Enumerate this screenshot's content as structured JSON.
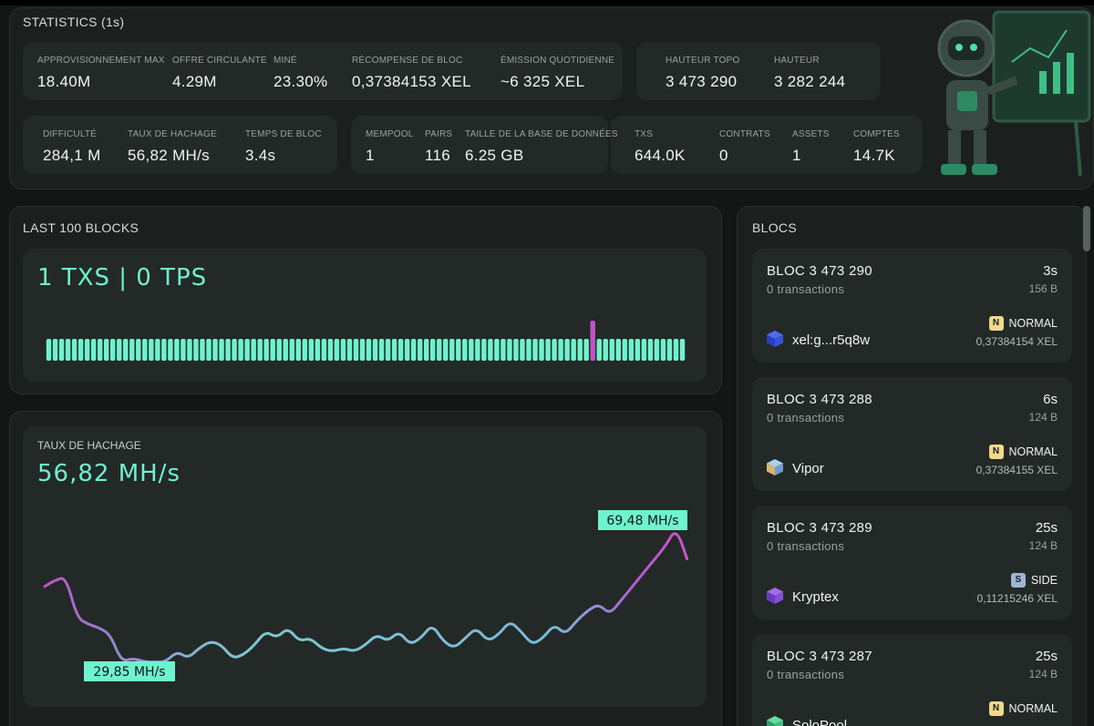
{
  "stats": {
    "title": "STATISTICS (1s)",
    "row1": [
      {
        "label": "APPROVISIONNEMENT MAX",
        "value": "18.40M"
      },
      {
        "label": "OFFRE CIRCULANTE",
        "value": "4.29M"
      },
      {
        "label": "MINÉ",
        "value": "23.30%"
      },
      {
        "label": "RÉCOMPENSE DE BLOC",
        "value": "0,37384153 XEL"
      },
      {
        "label": "ÉMISSION QUOTIDIENNE",
        "value": "~6 325 XEL"
      },
      {
        "label": "HAUTEUR TOPO",
        "value": "3 473 290"
      },
      {
        "label": "HAUTEUR",
        "value": "3 282 244"
      }
    ],
    "row2": [
      {
        "label": "DIFFICULTÉ",
        "value": "284,1 M"
      },
      {
        "label": "TAUX DE HACHAGE",
        "value": "56,82 MH/s"
      },
      {
        "label": "TEMPS DE BLOC",
        "value": "3.4s"
      },
      {
        "label": "MEMPOOL",
        "value": "1"
      },
      {
        "label": "PAIRS",
        "value": "116"
      },
      {
        "label": "TAILLE DE LA BASE DE DONNÉES",
        "value": "6.25 GB"
      },
      {
        "label": "TXS",
        "value": "644.0K"
      },
      {
        "label": "CONTRATS",
        "value": "0"
      },
      {
        "label": "ASSETS",
        "value": "1"
      },
      {
        "label": "COMPTES",
        "value": "14.7K"
      }
    ]
  },
  "last_blocks": {
    "title": "LAST 100 BLOCKS",
    "summary": "1 TXS | 0 TPS",
    "bar_count": 100,
    "highlight_index": 85
  },
  "hashrate": {
    "label": "TAUX DE HACHAGE",
    "value": "56,82 MH/s",
    "max_label": "69,48 MH/s",
    "min_label": "29,85 MH/s"
  },
  "chart_data": {
    "type": "line",
    "title": "TAUX DE HACHAGE",
    "series": [
      {
        "values": [
          52,
          54,
          55,
          43,
          41,
          40,
          38,
          30,
          31,
          30,
          29.85,
          30,
          33,
          31,
          34,
          36,
          35,
          31,
          32,
          35,
          39,
          37,
          40,
          36,
          37,
          34,
          33,
          34,
          33,
          35,
          38,
          36,
          39,
          35,
          37,
          41,
          36,
          34,
          37,
          40,
          36,
          38,
          42,
          39,
          35,
          37,
          41,
          38,
          42,
          45,
          47,
          44,
          48,
          52,
          56,
          60,
          64,
          69.48,
          60
        ]
      }
    ],
    "ylim": [
      25,
      72
    ],
    "annotations": [
      "69,48 MH/s",
      "29,85 MH/s"
    ],
    "colors": {
      "start": "#c34fc7",
      "mid": "#7fb9d6",
      "low": "#6ff2cd",
      "end": "#d04fd0"
    }
  },
  "blocks_panel": {
    "title": "BLOCS",
    "items": [
      {
        "name": "BLOC 3 473 290",
        "tx": "0 transactions",
        "age": "3s",
        "size": "156 B",
        "miner": "xel:g...r5q8w",
        "badge": "N",
        "type": "NORMAL",
        "reward": "0,37384154 XEL",
        "cube": "blue"
      },
      {
        "name": "BLOC 3 473 288",
        "tx": "0 transactions",
        "age": "6s",
        "size": "124 B",
        "miner": "Vipor",
        "badge": "N",
        "type": "NORMAL",
        "reward": "0,37384155 XEL",
        "cube": "lightblue"
      },
      {
        "name": "BLOC 3 473 289",
        "tx": "0 transactions",
        "age": "25s",
        "size": "124 B",
        "miner": "Kryptex",
        "badge": "S",
        "type": "SIDE",
        "reward": "0,11215246 XEL",
        "cube": "purple"
      },
      {
        "name": "BLOC 3 473 287",
        "tx": "0 transactions",
        "age": "25s",
        "size": "124 B",
        "miner": "SoloPool",
        "badge": "N",
        "type": "NORMAL",
        "reward": "",
        "cube": "green"
      }
    ]
  }
}
